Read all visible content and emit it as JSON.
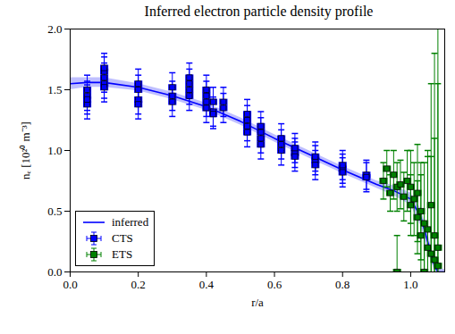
{
  "chart_data": {
    "type": "scatter",
    "title": "Inferred electron particle density profile",
    "x_label": "r/a",
    "y_label": "nₑ [10²⁰ m⁻³]",
    "xlim": [
      0,
      1.1
    ],
    "ylim": [
      0,
      2.0
    ],
    "xticks": [
      {
        "value": 0,
        "label": "0.0"
      },
      {
        "value": 0.2,
        "label": "0.2"
      },
      {
        "value": 0.4,
        "label": "0.4"
      },
      {
        "value": 0.6,
        "label": "0.6"
      },
      {
        "value": 0.8,
        "label": "0.8"
      },
      {
        "value": 1.0,
        "label": "1.0"
      }
    ],
    "yticks": [
      {
        "value": 0,
        "label": "0.0"
      },
      {
        "value": 0.5,
        "label": "0.5"
      },
      {
        "value": 1.0,
        "label": "1.0"
      },
      {
        "value": 1.5,
        "label": "1.5"
      },
      {
        "value": 2.0,
        "label": "2.0"
      }
    ],
    "legend": "lower left",
    "series": [
      {
        "name": "inferred",
        "type": "line",
        "color": "#0000ff",
        "x": [
          0,
          0.05,
          0.1,
          0.2,
          0.3,
          0.4,
          0.5,
          0.6,
          0.7,
          0.8,
          0.9,
          0.95,
          1.0,
          1.03,
          1.05,
          1.07,
          1.08,
          1.1
        ],
        "values": [
          1.55,
          1.56,
          1.56,
          1.52,
          1.45,
          1.36,
          1.24,
          1.1,
          0.97,
          0.84,
          0.72,
          0.67,
          0.6,
          0.45,
          0.25,
          0.05,
          0.0,
          0.0
        ],
        "band_lower": [
          1.5,
          1.52,
          1.52,
          1.49,
          1.42,
          1.33,
          1.21,
          1.07,
          0.94,
          0.81,
          0.69,
          0.63,
          0.55,
          0.38,
          0.18,
          0.01,
          0.0,
          0.0
        ],
        "band_upper": [
          1.6,
          1.6,
          1.6,
          1.55,
          1.48,
          1.39,
          1.27,
          1.13,
          1.0,
          0.87,
          0.75,
          0.71,
          0.65,
          0.52,
          0.32,
          0.1,
          0.03,
          0.02
        ]
      },
      {
        "name": "CTS",
        "type": "scatter",
        "marker": "square",
        "color": "#0000ff",
        "x": [
          0.05,
          0.05,
          0.05,
          0.05,
          0.1,
          0.1,
          0.1,
          0.1,
          0.1,
          0.2,
          0.2,
          0.2,
          0.2,
          0.3,
          0.3,
          0.3,
          0.35,
          0.35,
          0.35,
          0.35,
          0.4,
          0.4,
          0.4,
          0.4,
          0.42,
          0.42,
          0.42,
          0.45,
          0.45,
          0.52,
          0.52,
          0.52,
          0.52,
          0.56,
          0.56,
          0.56,
          0.56,
          0.62,
          0.62,
          0.62,
          0.66,
          0.66,
          0.66,
          0.72,
          0.72,
          0.72,
          0.8,
          0.8,
          0.8,
          0.87,
          0.87
        ],
        "values": [
          1.38,
          1.45,
          1.5,
          1.42,
          1.55,
          1.6,
          1.65,
          1.52,
          1.68,
          1.42,
          1.5,
          1.38,
          1.55,
          1.45,
          1.52,
          1.4,
          1.5,
          1.6,
          1.55,
          1.45,
          1.4,
          1.5,
          1.35,
          1.45,
          1.32,
          1.4,
          1.3,
          1.4,
          1.35,
          1.2,
          1.3,
          1.15,
          1.25,
          1.1,
          1.2,
          1.05,
          1.15,
          1.05,
          1.0,
          1.1,
          0.98,
          1.02,
          0.95,
          0.92,
          0.95,
          0.88,
          0.85,
          0.82,
          0.88,
          0.8,
          0.78
        ],
        "x_err": 0.01,
        "y_err": 0.12
      },
      {
        "name": "ETS",
        "type": "scatter",
        "marker": "square",
        "color": "#008000",
        "x": [
          0.92,
          0.93,
          0.94,
          0.95,
          0.96,
          0.96,
          0.97,
          0.98,
          0.99,
          1.0,
          1.0,
          1.01,
          1.02,
          1.02,
          1.03,
          1.03,
          1.04,
          1.04,
          1.05,
          1.05,
          1.06,
          1.06,
          1.07,
          1.07,
          1.08,
          1.08
        ],
        "values": [
          0.75,
          0.85,
          0.65,
          0.8,
          0.0,
          0.7,
          0.72,
          0.62,
          0.75,
          0.55,
          0.7,
          0.6,
          0.45,
          0.65,
          0.5,
          0.3,
          0.4,
          0.0,
          0.35,
          0.2,
          0.15,
          0.55,
          0.1,
          0.3,
          0.05,
          0.2
        ],
        "x_err": 0.01,
        "y_err": [
          0.15,
          0.15,
          0.15,
          0.2,
          0.3,
          0.2,
          0.2,
          0.2,
          0.25,
          0.25,
          0.3,
          0.3,
          0.3,
          0.4,
          0.4,
          0.5,
          0.5,
          0.4,
          0.6,
          0.8,
          0.8,
          1.0,
          1.0,
          1.5,
          1.5,
          2.0
        ]
      }
    ]
  }
}
